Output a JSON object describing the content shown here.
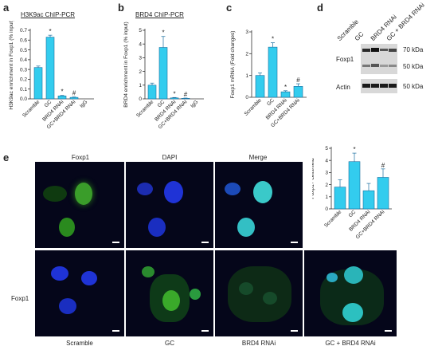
{
  "panel_letters": {
    "a": "a",
    "b": "b",
    "c": "c",
    "d": "d",
    "e": "e"
  },
  "titles": {
    "a": "H3K9ac ChIP-PCR",
    "b": "BRD4 ChIP-PCR"
  },
  "blot": {
    "lanes": [
      "Scramble",
      "GC",
      "BRD4 RNAi",
      "GC + BRD4 RNAi"
    ],
    "rows": [
      "Foxp1",
      "Actin"
    ],
    "markers": [
      "70 kDa",
      "50 kDa",
      "50 kDa"
    ]
  },
  "micro": {
    "col_headers": [
      "Foxp1",
      "DAPI",
      "Merge"
    ],
    "row_label": "Foxp1",
    "bottom_labels": [
      "Scramble",
      "GC",
      "BRD4 RNAi",
      "GC + BRD4 RNAi"
    ]
  },
  "colors": {
    "bar_fill": "#33ccee",
    "bar_stroke": "#1a6fa0",
    "axis": "#333333"
  },
  "chart_data": [
    {
      "id": "a",
      "type": "bar",
      "categories": [
        "Scramble",
        "GC",
        "BRD4 RNAi",
        "GC+BRD4 RNAi",
        "IgG"
      ],
      "values": [
        0.32,
        0.63,
        0.03,
        0.015,
        0.0
      ],
      "errors": [
        0.015,
        0.02,
        0.005,
        0.004,
        0.0
      ],
      "annotations": [
        "",
        "*",
        "*",
        "#",
        ""
      ],
      "ylabel": "H3K9ac enrichment in Foxp1 (% input)",
      "ylim": [
        0,
        0.7
      ],
      "yticks": [
        "0.0",
        "0.1",
        "0.2",
        "0.3",
        "0.4",
        "0.5",
        "0.6",
        "0.7"
      ]
    },
    {
      "id": "b",
      "type": "bar",
      "categories": [
        "Scramble",
        "GC",
        "BRD4 RNAi",
        "GC+BRD4 RNAi",
        "IgG"
      ],
      "values": [
        1.0,
        3.75,
        0.07,
        0.04,
        0.0
      ],
      "errors": [
        0.15,
        0.8,
        0.03,
        0.02,
        0.0
      ],
      "annotations": [
        "",
        "*",
        "*",
        "#",
        ""
      ],
      "ylabel": "BRD4 enrichment in Foxp1 (% input)",
      "ylim": [
        0,
        5
      ],
      "yticks": [
        "0",
        "1",
        "2",
        "3",
        "4",
        "5"
      ]
    },
    {
      "id": "c",
      "type": "bar",
      "categories": [
        "Scramble",
        "GC",
        "BRD4 RNAi",
        "GC+BRD4 RNAi"
      ],
      "values": [
        1.0,
        2.3,
        0.25,
        0.5
      ],
      "errors": [
        0.12,
        0.2,
        0.05,
        0.12
      ],
      "annotations": [
        "",
        "*",
        "*",
        "#"
      ],
      "ylabel": "Foxp1 mRNA (Fold changes)",
      "ylim": [
        0,
        3
      ],
      "yticks": [
        "0",
        "1",
        "2",
        "3"
      ]
    },
    {
      "id": "e",
      "type": "bar",
      "categories": [
        "Scramble",
        "GC",
        "BRD4 RNAi",
        "GC+BRD4 RNAi"
      ],
      "values": [
        1.8,
        3.9,
        1.5,
        2.6
      ],
      "errors": [
        0.6,
        0.7,
        0.6,
        0.7
      ],
      "annotations": [
        "",
        "*",
        "",
        "#"
      ],
      "ylabel": "Foxp1+ cells/field",
      "ylim": [
        0,
        5
      ],
      "yticks": [
        "0",
        "1",
        "2",
        "3",
        "4",
        "5"
      ]
    }
  ]
}
